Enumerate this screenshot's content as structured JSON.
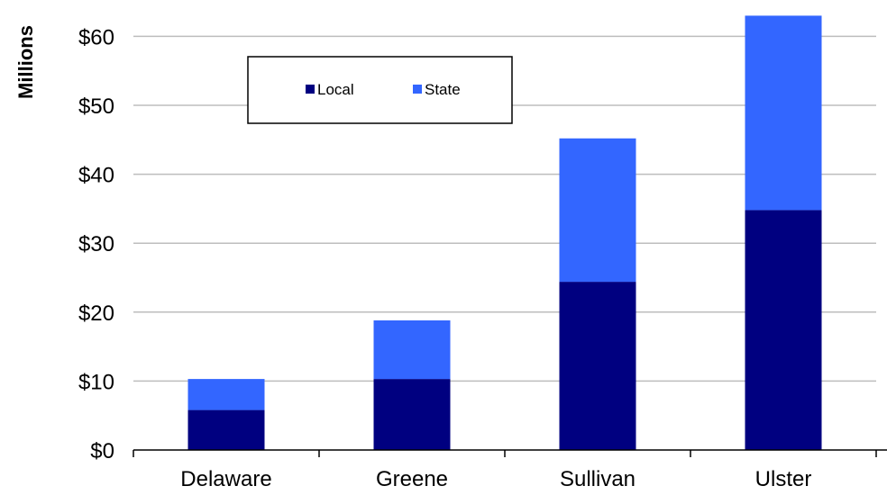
{
  "chart_data": {
    "type": "bar",
    "stacked": true,
    "categories": [
      "Delaware",
      "Greene",
      "Sullivan",
      "Ulster"
    ],
    "series": [
      {
        "name": "Local",
        "values": [
          5.8,
          10.3,
          24.4,
          34.8
        ],
        "color": "#000080"
      },
      {
        "name": "State",
        "values": [
          4.5,
          8.5,
          20.8,
          28.2
        ],
        "color": "#3366FF"
      }
    ],
    "title": "",
    "xlabel": "",
    "ylabel": "Millions",
    "ylim": [
      0,
      63
    ],
    "yticks": [
      0,
      10,
      20,
      30,
      40,
      50,
      60
    ],
    "ytick_labels": [
      "$0",
      "$10",
      "$20",
      "$30",
      "$40",
      "$50",
      "$60"
    ],
    "grid": true,
    "legend_position": "top-left"
  }
}
